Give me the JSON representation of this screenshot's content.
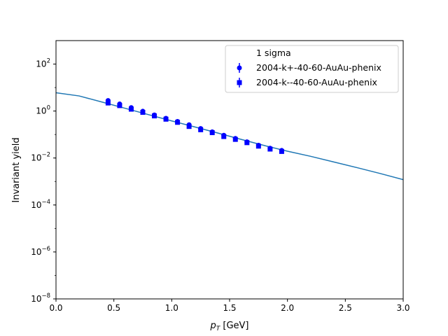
{
  "chart_data": {
    "type": "scatter",
    "xlabel": "p",
    "xlabel_sub": "T",
    "xlabel_unit": " [GeV]",
    "ylabel": "Invariant yield",
    "y_scale": "log",
    "xlim": [
      0.0,
      3.0
    ],
    "ylim": [
      1e-08,
      1000
    ],
    "x_ticks": [
      0.0,
      0.5,
      1.0,
      1.5,
      2.0,
      2.5,
      3.0
    ],
    "x_tick_labels": [
      "0.0",
      "0.5",
      "1.0",
      "1.5",
      "2.0",
      "2.5",
      "3.0"
    ],
    "y_ticks": [
      1e-08,
      1e-06,
      0.0001,
      0.01,
      1,
      100
    ],
    "y_tick_exponents": [
      "−8",
      "−6",
      "−4",
      "−2",
      "0",
      "2"
    ],
    "y_tick_base": "10",
    "grid": false,
    "legend_position": "top-right",
    "series": [
      {
        "name": "1 sigma",
        "kind": "line",
        "color": "#1f77b4",
        "x": [
          0.0,
          0.2,
          0.4,
          0.6,
          0.8,
          1.0,
          1.2,
          1.4,
          1.6,
          1.8,
          2.0,
          2.2,
          2.4,
          2.6,
          2.8,
          3.0
        ],
        "y": [
          6.0,
          4.4,
          2.4,
          1.3,
          0.7,
          0.38,
          0.21,
          0.115,
          0.062,
          0.034,
          0.0195,
          0.0118,
          0.0068,
          0.0039,
          0.0022,
          0.0012
        ]
      },
      {
        "name": "2004-k+-40-60-AuAu-phenix",
        "kind": "points",
        "marker": "circle",
        "color": "#0000ff",
        "x": [
          0.45,
          0.55,
          0.65,
          0.75,
          0.85,
          0.95,
          1.05,
          1.15,
          1.25,
          1.35,
          1.45,
          1.55,
          1.65,
          1.75,
          1.85,
          1.95
        ],
        "y": [
          2.8,
          2.0,
          1.4,
          0.98,
          0.68,
          0.49,
          0.36,
          0.26,
          0.18,
          0.13,
          0.093,
          0.068,
          0.049,
          0.035,
          0.026,
          0.021
        ]
      },
      {
        "name": "2004-k--40-60-AuAu-phenix",
        "kind": "points",
        "marker": "square",
        "color": "#0000ff",
        "x": [
          0.45,
          0.55,
          0.65,
          0.75,
          0.85,
          0.95,
          1.05,
          1.15,
          1.25,
          1.35,
          1.45,
          1.55,
          1.65,
          1.75,
          1.85,
          1.95
        ],
        "y": [
          2.2,
          1.7,
          1.2,
          0.88,
          0.62,
          0.45,
          0.33,
          0.22,
          0.16,
          0.12,
          0.082,
          0.062,
          0.045,
          0.032,
          0.024,
          0.019
        ]
      }
    ]
  }
}
